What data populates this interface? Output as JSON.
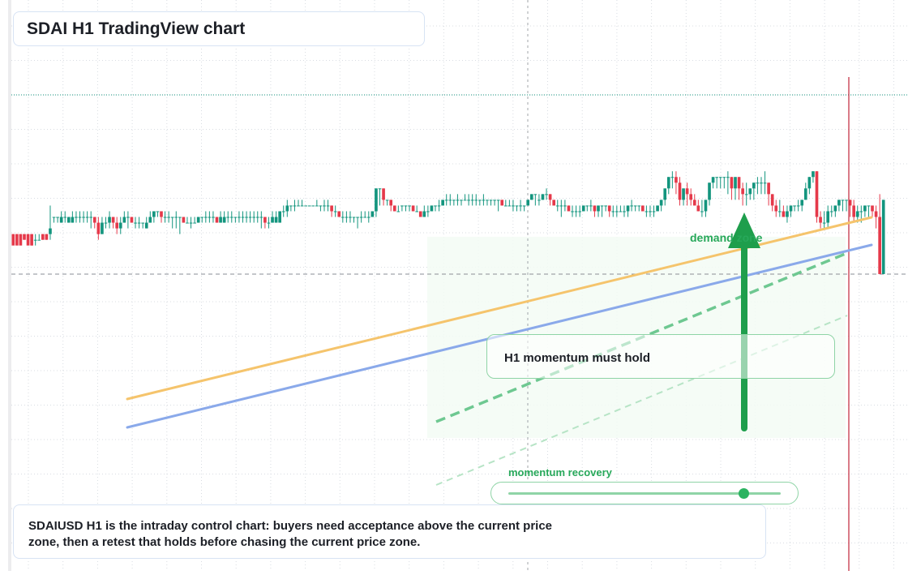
{
  "header": {
    "title": "SDAI H1 TradingView chart"
  },
  "annotations": {
    "demand_label": "demand zone",
    "momentum_callout": "H1 momentum must hold",
    "recovery_label": "momentum recovery",
    "recovery_level": 0.87
  },
  "note": {
    "line1": "SDAIUSD H1 is the intraday control chart: buyers need acceptance above the current price",
    "line2": "zone, then a retest that holds before chasing the current price zone."
  },
  "colors": {
    "up": "#13957e",
    "down": "#e5394a",
    "trend_orange": "#f5c46c",
    "trend_blue": "#8aa9ea",
    "accent_green": "#1e9e4c",
    "zone_fill": "#f3fbf5",
    "grid": "#d8dce2"
  },
  "chart_data": {
    "type": "candlestick",
    "symbol": "SDAIUSD",
    "timeframe": "H1",
    "ylim": [
      0.0,
      1.0
    ],
    "last_price_line": 0.86,
    "current_price_line": 0.52,
    "candles": [
      [
        0.59,
        0.57,
        0.59,
        0.58
      ],
      [
        0.59,
        0.57,
        0.59,
        0.58
      ],
      [
        0.59,
        0.57,
        0.59,
        0.58
      ],
      [
        0.59,
        0.58,
        0.59,
        0.58
      ],
      [
        0.59,
        0.57,
        0.59,
        0.58
      ],
      [
        0.59,
        0.57,
        0.59,
        0.57
      ],
      [
        0.58,
        0.58,
        0.59,
        0.57
      ],
      [
        0.58,
        0.58,
        0.59,
        0.58
      ],
      [
        0.59,
        0.58,
        0.59,
        0.58
      ],
      [
        0.59,
        0.58,
        0.59,
        0.58
      ],
      [
        0.59,
        0.6,
        0.64,
        0.58
      ],
      [
        0.62,
        0.62,
        0.62,
        0.61
      ],
      [
        0.62,
        0.62,
        0.62,
        0.61
      ],
      [
        0.61,
        0.62,
        0.63,
        0.61
      ],
      [
        0.62,
        0.62,
        0.63,
        0.61
      ],
      [
        0.61,
        0.62,
        0.62,
        0.61
      ],
      [
        0.61,
        0.62,
        0.63,
        0.61
      ],
      [
        0.62,
        0.62,
        0.63,
        0.61
      ],
      [
        0.62,
        0.62,
        0.63,
        0.61
      ],
      [
        0.62,
        0.62,
        0.63,
        0.61
      ],
      [
        0.62,
        0.62,
        0.63,
        0.61
      ],
      [
        0.62,
        0.62,
        0.63,
        0.6
      ],
      [
        0.62,
        0.61,
        0.62,
        0.6
      ],
      [
        0.61,
        0.59,
        0.62,
        0.58
      ],
      [
        0.59,
        0.61,
        0.62,
        0.59
      ],
      [
        0.61,
        0.61,
        0.62,
        0.6
      ],
      [
        0.61,
        0.62,
        0.63,
        0.6
      ],
      [
        0.62,
        0.61,
        0.62,
        0.6
      ],
      [
        0.61,
        0.6,
        0.62,
        0.59
      ],
      [
        0.6,
        0.61,
        0.62,
        0.59
      ],
      [
        0.61,
        0.62,
        0.63,
        0.61
      ],
      [
        0.62,
        0.62,
        0.63,
        0.6
      ],
      [
        0.62,
        0.61,
        0.62,
        0.61
      ],
      [
        0.61,
        0.61,
        0.62,
        0.6
      ],
      [
        0.61,
        0.61,
        0.62,
        0.6
      ],
      [
        0.61,
        0.61,
        0.61,
        0.6
      ],
      [
        0.6,
        0.61,
        0.62,
        0.6
      ],
      [
        0.61,
        0.62,
        0.63,
        0.61
      ],
      [
        0.62,
        0.63,
        0.63,
        0.61
      ],
      [
        0.63,
        0.63,
        0.63,
        0.62
      ],
      [
        0.63,
        0.62,
        0.63,
        0.61
      ],
      [
        0.62,
        0.62,
        0.63,
        0.61
      ],
      [
        0.62,
        0.62,
        0.63,
        0.61
      ],
      [
        0.62,
        0.62,
        0.62,
        0.6
      ],
      [
        0.62,
        0.62,
        0.63,
        0.6
      ],
      [
        0.62,
        0.62,
        0.62,
        0.59
      ],
      [
        0.62,
        0.61,
        0.62,
        0.61
      ],
      [
        0.61,
        0.61,
        0.62,
        0.61
      ],
      [
        0.61,
        0.61,
        0.62,
        0.6
      ],
      [
        0.61,
        0.61,
        0.62,
        0.61
      ],
      [
        0.61,
        0.62,
        0.62,
        0.61
      ],
      [
        0.62,
        0.62,
        0.62,
        0.61
      ],
      [
        0.62,
        0.62,
        0.63,
        0.61
      ],
      [
        0.62,
        0.62,
        0.63,
        0.61
      ],
      [
        0.62,
        0.62,
        0.63,
        0.61
      ],
      [
        0.62,
        0.61,
        0.62,
        0.61
      ],
      [
        0.61,
        0.62,
        0.63,
        0.61
      ],
      [
        0.61,
        0.62,
        0.63,
        0.61
      ],
      [
        0.62,
        0.62,
        0.63,
        0.61
      ],
      [
        0.62,
        0.62,
        0.63,
        0.61
      ],
      [
        0.62,
        0.62,
        0.62,
        0.61
      ],
      [
        0.62,
        0.62,
        0.63,
        0.61
      ],
      [
        0.62,
        0.62,
        0.63,
        0.61
      ],
      [
        0.62,
        0.62,
        0.63,
        0.61
      ],
      [
        0.62,
        0.62,
        0.63,
        0.61
      ],
      [
        0.62,
        0.62,
        0.63,
        0.61
      ],
      [
        0.62,
        0.62,
        0.63,
        0.61
      ],
      [
        0.62,
        0.62,
        0.63,
        0.6
      ],
      [
        0.62,
        0.61,
        0.62,
        0.6
      ],
      [
        0.61,
        0.61,
        0.62,
        0.6
      ],
      [
        0.61,
        0.62,
        0.63,
        0.61
      ],
      [
        0.61,
        0.62,
        0.63,
        0.61
      ],
      [
        0.61,
        0.63,
        0.63,
        0.61
      ],
      [
        0.63,
        0.63,
        0.64,
        0.62
      ],
      [
        0.63,
        0.64,
        0.65,
        0.62
      ],
      [
        0.64,
        0.64,
        0.64,
        0.63
      ],
      [
        0.64,
        0.64,
        0.65,
        0.63
      ],
      [
        0.64,
        0.64,
        0.65,
        0.64
      ],
      [
        0.64,
        0.64,
        0.65,
        0.64
      ],
      [
        0.64,
        0.64,
        0.64,
        0.64
      ],
      [
        0.64,
        0.64,
        0.64,
        0.64
      ],
      [
        0.64,
        0.64,
        0.64,
        0.64
      ],
      [
        0.64,
        0.64,
        0.65,
        0.64
      ],
      [
        0.64,
        0.64,
        0.64,
        0.63
      ],
      [
        0.64,
        0.64,
        0.65,
        0.63
      ],
      [
        0.64,
        0.64,
        0.65,
        0.63
      ],
      [
        0.64,
        0.63,
        0.64,
        0.62
      ],
      [
        0.63,
        0.63,
        0.64,
        0.62
      ],
      [
        0.63,
        0.62,
        0.63,
        0.62
      ],
      [
        0.62,
        0.62,
        0.63,
        0.61
      ],
      [
        0.62,
        0.62,
        0.63,
        0.61
      ],
      [
        0.62,
        0.62,
        0.63,
        0.61
      ],
      [
        0.62,
        0.62,
        0.62,
        0.61
      ],
      [
        0.62,
        0.62,
        0.62,
        0.6
      ],
      [
        0.62,
        0.62,
        0.63,
        0.61
      ],
      [
        0.62,
        0.62,
        0.63,
        0.62
      ],
      [
        0.62,
        0.62,
        0.63,
        0.61
      ],
      [
        0.62,
        0.63,
        0.63,
        0.62
      ],
      [
        0.63,
        0.67,
        0.67,
        0.62
      ],
      [
        0.67,
        0.67,
        0.67,
        0.64
      ],
      [
        0.67,
        0.65,
        0.67,
        0.64
      ],
      [
        0.65,
        0.65,
        0.65,
        0.64
      ],
      [
        0.65,
        0.64,
        0.65,
        0.63
      ],
      [
        0.64,
        0.63,
        0.64,
        0.63
      ],
      [
        0.63,
        0.63,
        0.64,
        0.63
      ],
      [
        0.64,
        0.64,
        0.64,
        0.63
      ],
      [
        0.64,
        0.64,
        0.64,
        0.63
      ],
      [
        0.64,
        0.64,
        0.64,
        0.63
      ],
      [
        0.64,
        0.63,
        0.64,
        0.63
      ],
      [
        0.63,
        0.63,
        0.64,
        0.63
      ],
      [
        0.63,
        0.62,
        0.63,
        0.62
      ],
      [
        0.62,
        0.63,
        0.64,
        0.62
      ],
      [
        0.63,
        0.63,
        0.64,
        0.62
      ],
      [
        0.63,
        0.64,
        0.64,
        0.63
      ],
      [
        0.64,
        0.64,
        0.64,
        0.63
      ],
      [
        0.64,
        0.64,
        0.65,
        0.63
      ],
      [
        0.64,
        0.65,
        0.65,
        0.64
      ],
      [
        0.65,
        0.65,
        0.66,
        0.64
      ],
      [
        0.65,
        0.65,
        0.66,
        0.64
      ],
      [
        0.65,
        0.65,
        0.65,
        0.64
      ],
      [
        0.65,
        0.65,
        0.66,
        0.64
      ],
      [
        0.65,
        0.65,
        0.65,
        0.64
      ],
      [
        0.65,
        0.65,
        0.66,
        0.65
      ],
      [
        0.65,
        0.65,
        0.66,
        0.64
      ],
      [
        0.65,
        0.65,
        0.66,
        0.64
      ],
      [
        0.65,
        0.65,
        0.66,
        0.64
      ],
      [
        0.65,
        0.65,
        0.65,
        0.64
      ],
      [
        0.65,
        0.65,
        0.66,
        0.64
      ],
      [
        0.65,
        0.65,
        0.65,
        0.64
      ],
      [
        0.65,
        0.65,
        0.65,
        0.64
      ],
      [
        0.65,
        0.65,
        0.65,
        0.64
      ],
      [
        0.65,
        0.65,
        0.65,
        0.63
      ],
      [
        0.65,
        0.64,
        0.65,
        0.64
      ],
      [
        0.64,
        0.64,
        0.65,
        0.64
      ],
      [
        0.64,
        0.64,
        0.65,
        0.64
      ],
      [
        0.64,
        0.64,
        0.65,
        0.63
      ],
      [
        0.64,
        0.64,
        0.64,
        0.63
      ],
      [
        0.64,
        0.64,
        0.65,
        0.63
      ],
      [
        0.64,
        0.64,
        0.64,
        0.63
      ],
      [
        0.64,
        0.65,
        0.65,
        0.64
      ],
      [
        0.65,
        0.66,
        0.66,
        0.65
      ],
      [
        0.66,
        0.66,
        0.66,
        0.64
      ],
      [
        0.65,
        0.65,
        0.66,
        0.64
      ],
      [
        0.65,
        0.66,
        0.66,
        0.65
      ],
      [
        0.66,
        0.66,
        0.67,
        0.65
      ],
      [
        0.66,
        0.65,
        0.66,
        0.64
      ],
      [
        0.65,
        0.64,
        0.65,
        0.64
      ],
      [
        0.64,
        0.64,
        0.65,
        0.63
      ],
      [
        0.64,
        0.64,
        0.65,
        0.62
      ],
      [
        0.64,
        0.64,
        0.65,
        0.63
      ],
      [
        0.64,
        0.63,
        0.64,
        0.63
      ],
      [
        0.63,
        0.63,
        0.64,
        0.62
      ],
      [
        0.63,
        0.63,
        0.64,
        0.62
      ],
      [
        0.63,
        0.63,
        0.64,
        0.62
      ],
      [
        0.63,
        0.64,
        0.64,
        0.63
      ],
      [
        0.64,
        0.64,
        0.64,
        0.63
      ],
      [
        0.64,
        0.64,
        0.65,
        0.63
      ],
      [
        0.64,
        0.63,
        0.64,
        0.62
      ],
      [
        0.63,
        0.64,
        0.64,
        0.62
      ],
      [
        0.64,
        0.64,
        0.64,
        0.62
      ],
      [
        0.64,
        0.64,
        0.64,
        0.63
      ],
      [
        0.64,
        0.63,
        0.64,
        0.62
      ],
      [
        0.63,
        0.63,
        0.64,
        0.62
      ],
      [
        0.63,
        0.63,
        0.64,
        0.62
      ],
      [
        0.63,
        0.63,
        0.64,
        0.63
      ],
      [
        0.63,
        0.63,
        0.64,
        0.62
      ],
      [
        0.63,
        0.64,
        0.64,
        0.62
      ],
      [
        0.64,
        0.64,
        0.65,
        0.63
      ],
      [
        0.64,
        0.64,
        0.64,
        0.63
      ],
      [
        0.64,
        0.64,
        0.64,
        0.63
      ],
      [
        0.64,
        0.63,
        0.64,
        0.63
      ],
      [
        0.63,
        0.63,
        0.64,
        0.62
      ],
      [
        0.63,
        0.63,
        0.64,
        0.62
      ],
      [
        0.63,
        0.63,
        0.64,
        0.62
      ],
      [
        0.63,
        0.64,
        0.64,
        0.63
      ],
      [
        0.64,
        0.65,
        0.65,
        0.63
      ],
      [
        0.65,
        0.67,
        0.67,
        0.64
      ],
      [
        0.67,
        0.69,
        0.69,
        0.66
      ],
      [
        0.69,
        0.69,
        0.7,
        0.67
      ],
      [
        0.69,
        0.68,
        0.7,
        0.66
      ],
      [
        0.68,
        0.65,
        0.69,
        0.64
      ],
      [
        0.65,
        0.67,
        0.67,
        0.64
      ],
      [
        0.67,
        0.66,
        0.68,
        0.64
      ],
      [
        0.66,
        0.65,
        0.67,
        0.64
      ],
      [
        0.65,
        0.64,
        0.66,
        0.64
      ],
      [
        0.64,
        0.63,
        0.65,
        0.63
      ],
      [
        0.63,
        0.63,
        0.65,
        0.62
      ],
      [
        0.63,
        0.65,
        0.65,
        0.62
      ],
      [
        0.65,
        0.68,
        0.68,
        0.64
      ],
      [
        0.68,
        0.69,
        0.69,
        0.67
      ],
      [
        0.69,
        0.69,
        0.69,
        0.67
      ],
      [
        0.69,
        0.69,
        0.69,
        0.67
      ],
      [
        0.69,
        0.69,
        0.69,
        0.67
      ],
      [
        0.69,
        0.69,
        0.7,
        0.66
      ],
      [
        0.69,
        0.67,
        0.69,
        0.65
      ],
      [
        0.67,
        0.69,
        0.69,
        0.65
      ],
      [
        0.69,
        0.67,
        0.69,
        0.65
      ],
      [
        0.67,
        0.66,
        0.68,
        0.64
      ],
      [
        0.66,
        0.66,
        0.68,
        0.64
      ],
      [
        0.66,
        0.67,
        0.67,
        0.65
      ],
      [
        0.67,
        0.68,
        0.68,
        0.65
      ],
      [
        0.68,
        0.68,
        0.69,
        0.66
      ],
      [
        0.68,
        0.68,
        0.69,
        0.66
      ],
      [
        0.68,
        0.68,
        0.7,
        0.66
      ],
      [
        0.68,
        0.66,
        0.68,
        0.64
      ],
      [
        0.66,
        0.64,
        0.66,
        0.63
      ],
      [
        0.64,
        0.63,
        0.65,
        0.62
      ],
      [
        0.63,
        0.63,
        0.65,
        0.62
      ],
      [
        0.63,
        0.62,
        0.64,
        0.62
      ],
      [
        0.62,
        0.63,
        0.64,
        0.61
      ],
      [
        0.63,
        0.64,
        0.64,
        0.62
      ],
      [
        0.64,
        0.64,
        0.64,
        0.63
      ],
      [
        0.64,
        0.64,
        0.65,
        0.63
      ],
      [
        0.64,
        0.65,
        0.65,
        0.63
      ],
      [
        0.65,
        0.67,
        0.68,
        0.65
      ],
      [
        0.67,
        0.69,
        0.69,
        0.66
      ],
      [
        0.69,
        0.7,
        0.7,
        0.68
      ],
      [
        0.7,
        0.62,
        0.7,
        0.61
      ],
      [
        0.62,
        0.61,
        0.63,
        0.6
      ],
      [
        0.61,
        0.61,
        0.63,
        0.6
      ],
      [
        0.61,
        0.63,
        0.64,
        0.6
      ],
      [
        0.63,
        0.63,
        0.64,
        0.62
      ],
      [
        0.63,
        0.64,
        0.64,
        0.62
      ],
      [
        0.64,
        0.65,
        0.65,
        0.63
      ],
      [
        0.65,
        0.65,
        0.65,
        0.63
      ],
      [
        0.65,
        0.65,
        0.65,
        0.63
      ],
      [
        0.65,
        0.64,
        0.65,
        0.62
      ],
      [
        0.64,
        0.62,
        0.65,
        0.61
      ],
      [
        0.62,
        0.63,
        0.64,
        0.61
      ],
      [
        0.63,
        0.63,
        0.64,
        0.61
      ],
      [
        0.63,
        0.64,
        0.64,
        0.62
      ],
      [
        0.64,
        0.64,
        0.64,
        0.62
      ],
      [
        0.64,
        0.63,
        0.64,
        0.62
      ],
      [
        0.63,
        0.62,
        0.64,
        0.6
      ],
      [
        0.62,
        0.52,
        0.66,
        0.52
      ],
      [
        0.52,
        0.65,
        0.65,
        0.52
      ]
    ]
  }
}
